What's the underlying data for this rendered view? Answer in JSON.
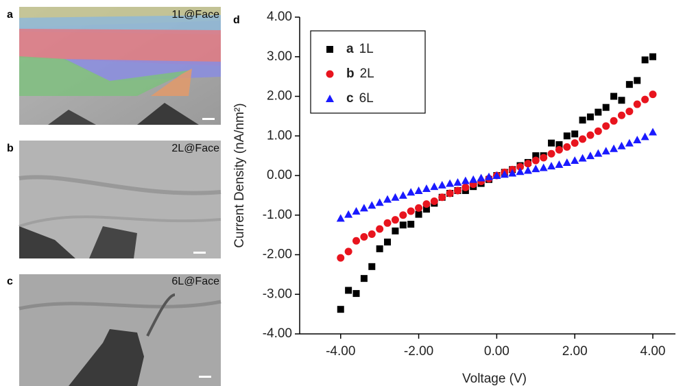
{
  "panels": [
    {
      "label": "a",
      "caption": "1L@Face"
    },
    {
      "label": "b",
      "caption": "2L@Face"
    },
    {
      "label": "c",
      "caption": "6L@Face"
    }
  ],
  "chart_data": {
    "type": "scatter",
    "panel_label": "d",
    "xlabel": "Voltage (V)",
    "ylabel": "Current Density (nA/nm²)",
    "x": [
      -4,
      -3.8,
      -3.6,
      -3.4,
      -3.2,
      -3,
      -2.8,
      -2.6,
      -2.4,
      -2.2,
      -2,
      -1.8,
      -1.6,
      -1.4,
      -1.2,
      -1,
      -0.8,
      -0.6,
      -0.4,
      -0.2,
      0,
      0.2,
      0.4,
      0.6,
      0.8,
      1,
      1.2,
      1.4,
      1.6,
      1.8,
      2,
      2.2,
      2.4,
      2.6,
      2.8,
      3,
      3.2,
      3.4,
      3.6,
      3.8,
      4
    ],
    "series": [
      {
        "tag": "a",
        "name": "1L",
        "color": "#000000",
        "marker": "square",
        "values": [
          -3.38,
          -2.9,
          -2.98,
          -2.6,
          -2.3,
          -1.85,
          -1.68,
          -1.4,
          -1.25,
          -1.23,
          -0.98,
          -0.85,
          -0.7,
          -0.55,
          -0.45,
          -0.38,
          -0.38,
          -0.28,
          -0.2,
          -0.1,
          0,
          0.08,
          0.15,
          0.25,
          0.33,
          0.5,
          0.5,
          0.82,
          0.78,
          1.0,
          1.05,
          1.4,
          1.48,
          1.6,
          1.72,
          2.0,
          1.9,
          2.3,
          2.4,
          2.92,
          3.0
        ]
      },
      {
        "tag": "b",
        "name": "2L",
        "color": "#e8141e",
        "marker": "circle",
        "values": [
          -2.08,
          -1.92,
          -1.65,
          -1.55,
          -1.48,
          -1.35,
          -1.2,
          -1.12,
          -1.0,
          -0.9,
          -0.82,
          -0.72,
          -0.65,
          -0.55,
          -0.45,
          -0.38,
          -0.3,
          -0.22,
          -0.15,
          -0.08,
          0,
          0.08,
          0.15,
          0.22,
          0.3,
          0.38,
          0.45,
          0.55,
          0.65,
          0.72,
          0.82,
          0.92,
          1.02,
          1.12,
          1.25,
          1.38,
          1.52,
          1.62,
          1.8,
          1.92,
          2.05
        ]
      },
      {
        "tag": "c",
        "name": "6L",
        "color": "#1a1aff",
        "marker": "triangle",
        "values": [
          -1.08,
          -0.98,
          -0.9,
          -0.82,
          -0.75,
          -0.68,
          -0.6,
          -0.55,
          -0.5,
          -0.42,
          -0.38,
          -0.33,
          -0.28,
          -0.24,
          -0.2,
          -0.17,
          -0.13,
          -0.1,
          -0.06,
          -0.03,
          0,
          0.03,
          0.06,
          0.1,
          0.13,
          0.17,
          0.2,
          0.24,
          0.28,
          0.33,
          0.38,
          0.44,
          0.5,
          0.56,
          0.62,
          0.68,
          0.75,
          0.82,
          0.9,
          0.98,
          1.1
        ]
      }
    ],
    "xlim": [
      -5.05,
      4.58
    ],
    "ylim": [
      -4,
      4
    ],
    "xticks": [
      {
        "value": -4,
        "label": "-4.00"
      },
      {
        "value": -2,
        "label": "-2.00"
      },
      {
        "value": 0,
        "label": "0.00"
      },
      {
        "value": 2,
        "label": "2.00"
      },
      {
        "value": 4,
        "label": "4.00"
      }
    ],
    "yticks": [
      {
        "value": -4,
        "label": "-4.00"
      },
      {
        "value": -3,
        "label": "-3.00"
      },
      {
        "value": -2,
        "label": "-2.00"
      },
      {
        "value": -1,
        "label": "-1.00"
      },
      {
        "value": 0,
        "label": "0.00"
      },
      {
        "value": 1,
        "label": "1.00"
      },
      {
        "value": 2,
        "label": "2.00"
      },
      {
        "value": 3,
        "label": "3.00"
      },
      {
        "value": 4,
        "label": "4.00"
      }
    ],
    "legend": "upper left"
  }
}
